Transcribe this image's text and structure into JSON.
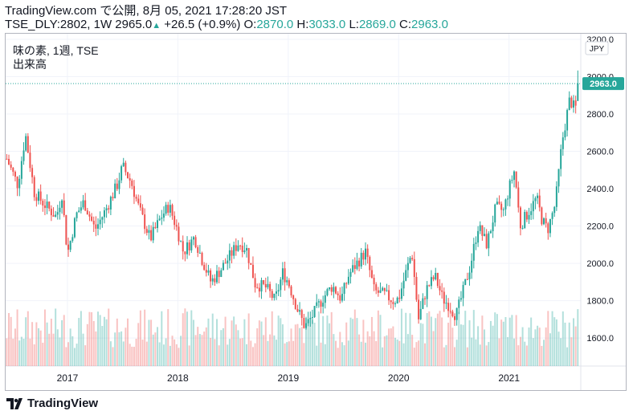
{
  "header": {
    "line1": "TradingView.com で公開, 8月 05, 2021 17:28:20 JST",
    "symbol": "TSE_DLY:2802, 1W",
    "price": "2965.0",
    "change": "+26.5 (+0.9%)",
    "o_label": "O:",
    "o_value": "2870.0",
    "h_label": "H:",
    "h_value": "3033.0",
    "l_label": "L:",
    "l_value": "2869.0",
    "c_label": "C:",
    "c_value": "2963.0"
  },
  "legend": {
    "title": "味の素, 1週, TSE",
    "volume_label": "出来高"
  },
  "footer": {
    "brand": "TradingView"
  },
  "colors": {
    "up": "#26a69a",
    "down": "#ef5350",
    "grid": "#f0f3fa",
    "axis_text": "#131722"
  },
  "chart_data": {
    "type": "candlestick",
    "currency": "JPY",
    "last_price_label": "2963.0",
    "ylim": [
      1450,
      3230
    ],
    "yticks": [
      "1600.0",
      "1800.0",
      "2000.0",
      "2200.0",
      "2400.0",
      "2600.0",
      "2800.0",
      "3000.0",
      "3200.0"
    ],
    "xticks": [
      "2017",
      "2018",
      "2019",
      "2020",
      "2021"
    ],
    "x_tick_years": [
      2017.0,
      2018.0,
      2019.0,
      2020.0,
      2021.0
    ],
    "xlim": [
      2016.44,
      2021.65
    ],
    "grid": true,
    "series_close_path": [
      [
        2016.45,
        2560
      ],
      [
        2016.55,
        2420
      ],
      [
        2016.62,
        2690
      ],
      [
        2016.7,
        2380
      ],
      [
        2016.8,
        2310
      ],
      [
        2016.9,
        2250
      ],
      [
        2016.95,
        2370
      ],
      [
        2017.0,
        2050
      ],
      [
        2017.08,
        2260
      ],
      [
        2017.15,
        2330
      ],
      [
        2017.25,
        2180
      ],
      [
        2017.35,
        2290
      ],
      [
        2017.45,
        2420
      ],
      [
        2017.5,
        2520
      ],
      [
        2017.58,
        2430
      ],
      [
        2017.65,
        2290
      ],
      [
        2017.75,
        2130
      ],
      [
        2017.85,
        2250
      ],
      [
        2017.92,
        2310
      ],
      [
        2018.0,
        2170
      ],
      [
        2018.05,
        2060
      ],
      [
        2018.15,
        2140
      ],
      [
        2018.22,
        2020
      ],
      [
        2018.3,
        1900
      ],
      [
        2018.38,
        1960
      ],
      [
        2018.45,
        2020
      ],
      [
        2018.55,
        2110
      ],
      [
        2018.62,
        2080
      ],
      [
        2018.7,
        1890
      ],
      [
        2018.8,
        1870
      ],
      [
        2018.88,
        1800
      ],
      [
        2018.95,
        1950
      ],
      [
        2019.0,
        1900
      ],
      [
        2019.08,
        1760
      ],
      [
        2019.15,
        1660
      ],
      [
        2019.22,
        1720
      ],
      [
        2019.32,
        1820
      ],
      [
        2019.4,
        1880
      ],
      [
        2019.48,
        1810
      ],
      [
        2019.55,
        1940
      ],
      [
        2019.62,
        2000
      ],
      [
        2019.7,
        2060
      ],
      [
        2019.78,
        1850
      ],
      [
        2019.88,
        1830
      ],
      [
        2019.95,
        1800
      ],
      [
        2020.0,
        1810
      ],
      [
        2020.08,
        1980
      ],
      [
        2020.12,
        2060
      ],
      [
        2020.18,
        1700
      ],
      [
        2020.25,
        1860
      ],
      [
        2020.33,
        1930
      ],
      [
        2020.4,
        1810
      ],
      [
        2020.45,
        1780
      ],
      [
        2020.52,
        1720
      ],
      [
        2020.58,
        1840
      ],
      [
        2020.65,
        1990
      ],
      [
        2020.72,
        2200
      ],
      [
        2020.8,
        2100
      ],
      [
        2020.88,
        2300
      ],
      [
        2020.95,
        2280
      ],
      [
        2021.0,
        2400
      ],
      [
        2021.05,
        2500
      ],
      [
        2021.1,
        2200
      ],
      [
        2021.18,
        2280
      ],
      [
        2021.25,
        2350
      ],
      [
        2021.3,
        2230
      ],
      [
        2021.35,
        2180
      ],
      [
        2021.42,
        2320
      ],
      [
        2021.48,
        2650
      ],
      [
        2021.55,
        2880
      ],
      [
        2021.6,
        2820
      ],
      [
        2021.64,
        2963
      ]
    ]
  }
}
